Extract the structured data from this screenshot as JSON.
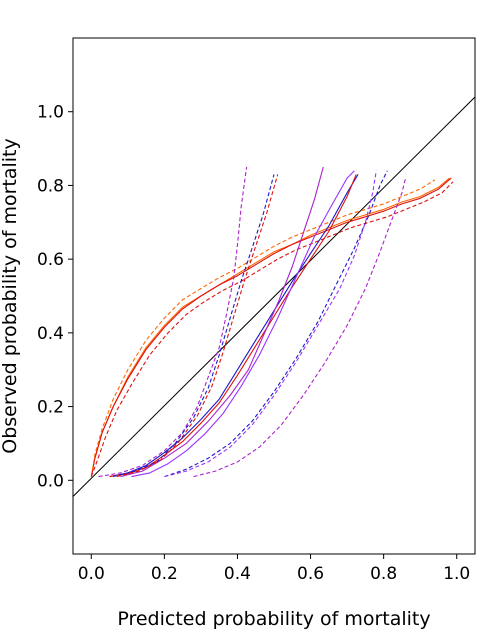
{
  "chart_data": {
    "type": "line",
    "title": "",
    "xlabel": "Predicted probability of mortality",
    "ylabel": "Observed probability of mortality",
    "xlim": [
      -0.05,
      1.05
    ],
    "ylim": [
      -0.2,
      1.2
    ],
    "xticks": [
      "0.0",
      "0.2",
      "0.4",
      "0.6",
      "0.8",
      "1.0"
    ],
    "yticks": [
      "0.0",
      "0.2",
      "0.4",
      "0.6",
      "0.8",
      "1.0"
    ],
    "grid": false,
    "legend": "none",
    "colors": {
      "diagonal": "#000000",
      "orange": "#ff6600",
      "red": "#dd1111",
      "blue": "#1a1acc",
      "purple": "#9933ff",
      "violet": "#aa22cc"
    },
    "series": [
      {
        "id": "diagonal",
        "color": "#000000",
        "dashed": false,
        "points": [
          [
            -0.05,
            -0.044
          ],
          [
            1.05,
            1.04
          ]
        ]
      },
      {
        "id": "orange-solid",
        "color": "#ff6600",
        "dashed": false,
        "points": [
          [
            0.0,
            0.01
          ],
          [
            0.01,
            0.06
          ],
          [
            0.03,
            0.13
          ],
          [
            0.06,
            0.2
          ],
          [
            0.1,
            0.28
          ],
          [
            0.15,
            0.36
          ],
          [
            0.2,
            0.42
          ],
          [
            0.25,
            0.47
          ],
          [
            0.3,
            0.5
          ],
          [
            0.35,
            0.53
          ],
          [
            0.4,
            0.56
          ],
          [
            0.45,
            0.59
          ],
          [
            0.5,
            0.62
          ],
          [
            0.55,
            0.64
          ],
          [
            0.6,
            0.665
          ],
          [
            0.65,
            0.685
          ],
          [
            0.7,
            0.705
          ],
          [
            0.75,
            0.72
          ],
          [
            0.8,
            0.735
          ],
          [
            0.85,
            0.755
          ],
          [
            0.9,
            0.77
          ],
          [
            0.95,
            0.795
          ],
          [
            0.98,
            0.82
          ]
        ]
      },
      {
        "id": "red-solid",
        "color": "#dd1111",
        "dashed": false,
        "points": [
          [
            0.0,
            0.01
          ],
          [
            0.01,
            0.06
          ],
          [
            0.03,
            0.13
          ],
          [
            0.06,
            0.2
          ],
          [
            0.1,
            0.275
          ],
          [
            0.15,
            0.355
          ],
          [
            0.2,
            0.415
          ],
          [
            0.25,
            0.465
          ],
          [
            0.3,
            0.5
          ],
          [
            0.35,
            0.53
          ],
          [
            0.4,
            0.555
          ],
          [
            0.45,
            0.585
          ],
          [
            0.5,
            0.615
          ],
          [
            0.55,
            0.64
          ],
          [
            0.6,
            0.66
          ],
          [
            0.65,
            0.68
          ],
          [
            0.7,
            0.7
          ],
          [
            0.75,
            0.715
          ],
          [
            0.8,
            0.73
          ],
          [
            0.85,
            0.75
          ],
          [
            0.9,
            0.765
          ],
          [
            0.95,
            0.79
          ],
          [
            0.985,
            0.82
          ]
        ]
      },
      {
        "id": "orange-dashed-upper",
        "color": "#ff6600",
        "dashed": true,
        "points": [
          [
            0.0,
            0.01
          ],
          [
            0.01,
            0.07
          ],
          [
            0.03,
            0.14
          ],
          [
            0.06,
            0.22
          ],
          [
            0.1,
            0.3
          ],
          [
            0.15,
            0.38
          ],
          [
            0.2,
            0.44
          ],
          [
            0.25,
            0.49
          ],
          [
            0.3,
            0.52
          ],
          [
            0.35,
            0.55
          ],
          [
            0.4,
            0.575
          ],
          [
            0.45,
            0.605
          ],
          [
            0.5,
            0.635
          ],
          [
            0.55,
            0.66
          ],
          [
            0.6,
            0.68
          ],
          [
            0.65,
            0.7
          ],
          [
            0.7,
            0.72
          ],
          [
            0.75,
            0.735
          ],
          [
            0.8,
            0.75
          ],
          [
            0.85,
            0.77
          ],
          [
            0.9,
            0.79
          ],
          [
            0.94,
            0.815
          ]
        ]
      },
      {
        "id": "red-dashed-lower",
        "color": "#dd1111",
        "dashed": true,
        "points": [
          [
            0.0,
            0.01
          ],
          [
            0.015,
            0.05
          ],
          [
            0.04,
            0.12
          ],
          [
            0.07,
            0.19
          ],
          [
            0.11,
            0.26
          ],
          [
            0.16,
            0.34
          ],
          [
            0.21,
            0.4
          ],
          [
            0.26,
            0.45
          ],
          [
            0.31,
            0.485
          ],
          [
            0.36,
            0.515
          ],
          [
            0.41,
            0.54
          ],
          [
            0.46,
            0.57
          ],
          [
            0.51,
            0.6
          ],
          [
            0.56,
            0.625
          ],
          [
            0.61,
            0.645
          ],
          [
            0.66,
            0.665
          ],
          [
            0.71,
            0.685
          ],
          [
            0.76,
            0.7
          ],
          [
            0.81,
            0.715
          ],
          [
            0.86,
            0.735
          ],
          [
            0.91,
            0.755
          ],
          [
            0.96,
            0.78
          ],
          [
            0.99,
            0.81
          ]
        ]
      },
      {
        "id": "blue-solid",
        "color": "#1a1acc",
        "dashed": false,
        "points": [
          [
            0.05,
            0.01
          ],
          [
            0.1,
            0.02
          ],
          [
            0.15,
            0.04
          ],
          [
            0.2,
            0.075
          ],
          [
            0.25,
            0.115
          ],
          [
            0.3,
            0.165
          ],
          [
            0.35,
            0.22
          ],
          [
            0.4,
            0.3
          ],
          [
            0.45,
            0.38
          ],
          [
            0.5,
            0.46
          ],
          [
            0.55,
            0.54
          ],
          [
            0.6,
            0.615
          ],
          [
            0.65,
            0.69
          ],
          [
            0.7,
            0.78
          ],
          [
            0.73,
            0.83
          ]
        ]
      },
      {
        "id": "red-solid-2",
        "color": "#dd1111",
        "dashed": false,
        "points": [
          [
            0.05,
            0.01
          ],
          [
            0.1,
            0.018
          ],
          [
            0.15,
            0.035
          ],
          [
            0.2,
            0.068
          ],
          [
            0.25,
            0.105
          ],
          [
            0.3,
            0.155
          ],
          [
            0.35,
            0.21
          ],
          [
            0.4,
            0.285
          ],
          [
            0.45,
            0.365
          ],
          [
            0.5,
            0.445
          ],
          [
            0.55,
            0.525
          ],
          [
            0.6,
            0.6
          ],
          [
            0.65,
            0.675
          ],
          [
            0.7,
            0.77
          ],
          [
            0.725,
            0.83
          ]
        ]
      },
      {
        "id": "purple-solid",
        "color": "#9933ff",
        "dashed": false,
        "points": [
          [
            0.11,
            0.01
          ],
          [
            0.16,
            0.02
          ],
          [
            0.21,
            0.045
          ],
          [
            0.26,
            0.08
          ],
          [
            0.31,
            0.125
          ],
          [
            0.36,
            0.18
          ],
          [
            0.41,
            0.255
          ],
          [
            0.46,
            0.34
          ],
          [
            0.51,
            0.44
          ],
          [
            0.56,
            0.55
          ],
          [
            0.61,
            0.66
          ],
          [
            0.66,
            0.75
          ],
          [
            0.7,
            0.82
          ],
          [
            0.72,
            0.84
          ]
        ]
      },
      {
        "id": "purple-solid-steep",
        "color": "#aa22cc",
        "dashed": false,
        "points": [
          [
            0.08,
            0.01
          ],
          [
            0.14,
            0.025
          ],
          [
            0.2,
            0.06
          ],
          [
            0.26,
            0.1
          ],
          [
            0.32,
            0.16
          ],
          [
            0.38,
            0.23
          ],
          [
            0.43,
            0.3
          ],
          [
            0.47,
            0.39
          ],
          [
            0.51,
            0.48
          ],
          [
            0.55,
            0.58
          ],
          [
            0.58,
            0.67
          ],
          [
            0.61,
            0.76
          ],
          [
            0.635,
            0.85
          ]
        ]
      },
      {
        "id": "purple-dashed-left",
        "color": "#aa22cc",
        "dashed": true,
        "points": [
          [
            0.02,
            0.01
          ],
          [
            0.08,
            0.02
          ],
          [
            0.14,
            0.04
          ],
          [
            0.2,
            0.08
          ],
          [
            0.25,
            0.13
          ],
          [
            0.29,
            0.2
          ],
          [
            0.32,
            0.28
          ],
          [
            0.35,
            0.36
          ],
          [
            0.37,
            0.45
          ],
          [
            0.39,
            0.55
          ],
          [
            0.4,
            0.64
          ],
          [
            0.41,
            0.74
          ],
          [
            0.425,
            0.85
          ]
        ]
      },
      {
        "id": "blue-dashed-left",
        "color": "#1a1acc",
        "dashed": true,
        "points": [
          [
            0.06,
            0.01
          ],
          [
            0.12,
            0.025
          ],
          [
            0.18,
            0.05
          ],
          [
            0.23,
            0.1
          ],
          [
            0.28,
            0.17
          ],
          [
            0.32,
            0.25
          ],
          [
            0.35,
            0.34
          ],
          [
            0.38,
            0.44
          ],
          [
            0.41,
            0.54
          ],
          [
            0.44,
            0.63
          ],
          [
            0.47,
            0.72
          ],
          [
            0.5,
            0.83
          ]
        ]
      },
      {
        "id": "red-dashed-left",
        "color": "#dd1111",
        "dashed": true,
        "points": [
          [
            0.07,
            0.01
          ],
          [
            0.13,
            0.025
          ],
          [
            0.19,
            0.055
          ],
          [
            0.24,
            0.105
          ],
          [
            0.29,
            0.175
          ],
          [
            0.33,
            0.255
          ],
          [
            0.36,
            0.345
          ],
          [
            0.39,
            0.445
          ],
          [
            0.42,
            0.545
          ],
          [
            0.45,
            0.635
          ],
          [
            0.48,
            0.725
          ],
          [
            0.51,
            0.83
          ]
        ]
      },
      {
        "id": "blue-dashed-right",
        "color": "#1a1acc",
        "dashed": true,
        "points": [
          [
            0.2,
            0.01
          ],
          [
            0.26,
            0.03
          ],
          [
            0.32,
            0.06
          ],
          [
            0.38,
            0.1
          ],
          [
            0.44,
            0.16
          ],
          [
            0.5,
            0.24
          ],
          [
            0.56,
            0.33
          ],
          [
            0.62,
            0.43
          ],
          [
            0.67,
            0.53
          ],
          [
            0.72,
            0.63
          ],
          [
            0.76,
            0.72
          ],
          [
            0.79,
            0.8
          ],
          [
            0.81,
            0.84
          ]
        ]
      },
      {
        "id": "purple-dashed-right",
        "color": "#9933ff",
        "dashed": true,
        "points": [
          [
            0.2,
            0.01
          ],
          [
            0.26,
            0.025
          ],
          [
            0.32,
            0.05
          ],
          [
            0.38,
            0.09
          ],
          [
            0.44,
            0.15
          ],
          [
            0.5,
            0.23
          ],
          [
            0.56,
            0.32
          ],
          [
            0.62,
            0.42
          ],
          [
            0.68,
            0.52
          ],
          [
            0.72,
            0.61
          ],
          [
            0.75,
            0.7
          ],
          [
            0.77,
            0.78
          ],
          [
            0.78,
            0.84
          ]
        ]
      },
      {
        "id": "violet-dashed-far",
        "color": "#aa22cc",
        "dashed": true,
        "points": [
          [
            0.28,
            0.01
          ],
          [
            0.34,
            0.025
          ],
          [
            0.4,
            0.05
          ],
          [
            0.46,
            0.09
          ],
          [
            0.52,
            0.15
          ],
          [
            0.58,
            0.23
          ],
          [
            0.64,
            0.32
          ],
          [
            0.7,
            0.42
          ],
          [
            0.75,
            0.52
          ],
          [
            0.79,
            0.62
          ],
          [
            0.82,
            0.7
          ],
          [
            0.85,
            0.78
          ],
          [
            0.86,
            0.82
          ]
        ]
      }
    ]
  }
}
